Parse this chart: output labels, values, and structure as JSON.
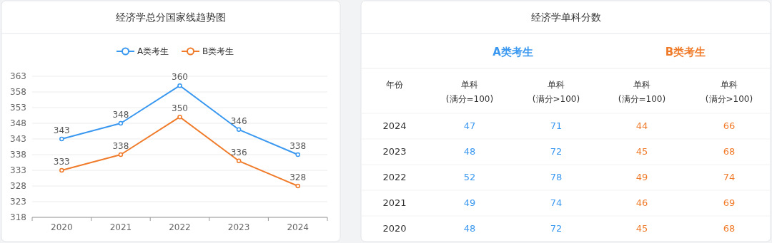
{
  "chart_data": [
    {
      "type": "line",
      "title": "经济学总分国家线趋势图",
      "categories": [
        "2020",
        "2021",
        "2022",
        "2023",
        "2024"
      ],
      "series": [
        {
          "name": "A类考生",
          "color": "#3a98f0",
          "values": [
            343,
            348,
            360,
            346,
            338
          ]
        },
        {
          "name": "B类考生",
          "color": "#f07b2a",
          "values": [
            333,
            338,
            350,
            336,
            328
          ]
        }
      ],
      "ylim": [
        318,
        363
      ],
      "yticks": [
        318,
        323,
        328,
        333,
        338,
        343,
        348,
        353,
        358,
        363
      ],
      "grid": "y",
      "legend": "top",
      "marker": "circle",
      "data_labels": true
    },
    {
      "type": "heatmap",
      "title": "经济学单科分数",
      "ylabel": "年份",
      "annotations": [
        "A类考生",
        "B类考生"
      ],
      "categories": [
        "单科\n(满分=100)",
        "单科\n(满分>100)",
        "单科\n(满分=100)",
        "单科\n(满分>100)"
      ],
      "y_categories": [
        "2024",
        "2023",
        "2022",
        "2021",
        "2020"
      ],
      "colors": [
        "#3a98f0",
        "#3a98f0",
        "#f07b2a",
        "#f07b2a"
      ],
      "data_labels": true,
      "cells": [
        [
          47,
          71,
          44,
          66
        ],
        [
          48,
          72,
          45,
          68
        ],
        [
          52,
          78,
          49,
          74
        ],
        [
          49,
          74,
          46,
          69
        ],
        [
          48,
          72,
          45,
          68
        ]
      ]
    }
  ]
}
